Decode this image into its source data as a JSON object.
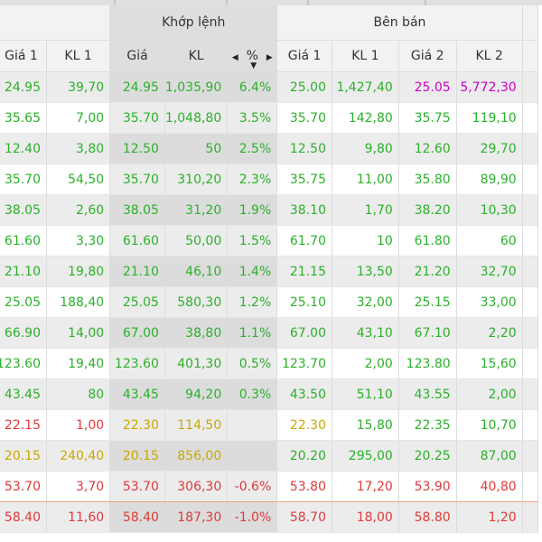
{
  "colors": {
    "up": "#2bb12b",
    "reference": "#c9a800",
    "down": "#e03a3a",
    "ceiling": "#cc00cc"
  },
  "groups": {
    "khop_lenh": "Khớp lệnh",
    "ben_ban": "Bên bán"
  },
  "headers": {
    "buy_price1": "Giá 1",
    "buy_vol1": "KL 1",
    "match_price": "Giá",
    "match_vol": "KL",
    "change_pct": "%",
    "sell_price1": "Giá 1",
    "sell_vol1": "KL 1",
    "sell_price2": "Giá 2",
    "sell_vol2": "KL 2"
  },
  "rows": [
    {
      "c": [
        "24.95",
        "39,70",
        "24.95",
        "1,035,90",
        "6.4%",
        "25.00",
        "1,427,40",
        "25.05",
        "5,772,30"
      ],
      "k": [
        "up",
        "up",
        "up",
        "up",
        "up",
        "up",
        "up",
        "ceil",
        "ceil"
      ]
    },
    {
      "c": [
        "35.65",
        "7,00",
        "35.70",
        "1,048,80",
        "3.5%",
        "35.70",
        "142,80",
        "35.75",
        "119,10"
      ],
      "k": [
        "up",
        "up",
        "up",
        "up",
        "up",
        "up",
        "up",
        "up",
        "up"
      ]
    },
    {
      "c": [
        "12.40",
        "3,80",
        "12.50",
        "50",
        "2.5%",
        "12.50",
        "9,80",
        "12.60",
        "29,70"
      ],
      "k": [
        "up",
        "up",
        "up",
        "up",
        "up",
        "up",
        "up",
        "up",
        "up"
      ]
    },
    {
      "c": [
        "35.70",
        "54,50",
        "35.70",
        "310,20",
        "2.3%",
        "35.75",
        "11,00",
        "35.80",
        "89,90"
      ],
      "k": [
        "up",
        "up",
        "up",
        "up",
        "up",
        "up",
        "up",
        "up",
        "up"
      ]
    },
    {
      "c": [
        "38.05",
        "2,60",
        "38.05",
        "31,20",
        "1.9%",
        "38.10",
        "1,70",
        "38.20",
        "10,30"
      ],
      "k": [
        "up",
        "up",
        "up",
        "up",
        "up",
        "up",
        "up",
        "up",
        "up"
      ]
    },
    {
      "c": [
        "61.60",
        "3,30",
        "61.60",
        "50,00",
        "1.5%",
        "61.70",
        "10",
        "61.80",
        "60"
      ],
      "k": [
        "up",
        "up",
        "up",
        "up",
        "up",
        "up",
        "up",
        "up",
        "up"
      ]
    },
    {
      "c": [
        "21.10",
        "19,80",
        "21.10",
        "46,10",
        "1.4%",
        "21.15",
        "13,50",
        "21.20",
        "32,70"
      ],
      "k": [
        "up",
        "up",
        "up",
        "up",
        "up",
        "up",
        "up",
        "up",
        "up"
      ]
    },
    {
      "c": [
        "25.05",
        "188,40",
        "25.05",
        "580,30",
        "1.2%",
        "25.10",
        "32,00",
        "25.15",
        "33,00"
      ],
      "k": [
        "up",
        "up",
        "up",
        "up",
        "up",
        "up",
        "up",
        "up",
        "up"
      ]
    },
    {
      "c": [
        "66.90",
        "14,00",
        "67.00",
        "38,80",
        "1.1%",
        "67.00",
        "43,10",
        "67.10",
        "2,20"
      ],
      "k": [
        "up",
        "up",
        "up",
        "up",
        "up",
        "up",
        "up",
        "up",
        "up"
      ]
    },
    {
      "c": [
        "123.60",
        "19,40",
        "123.60",
        "401,30",
        "0.5%",
        "123.70",
        "2,00",
        "123.80",
        "15,60"
      ],
      "k": [
        "up",
        "up",
        "up",
        "up",
        "up",
        "up",
        "up",
        "up",
        "up"
      ]
    },
    {
      "c": [
        "43.45",
        "80",
        "43.45",
        "94,20",
        "0.3%",
        "43.50",
        "51,10",
        "43.55",
        "2,00"
      ],
      "k": [
        "up",
        "up",
        "up",
        "up",
        "up",
        "up",
        "up",
        "up",
        "up"
      ]
    },
    {
      "c": [
        "22.15",
        "1,00",
        "22.30",
        "114,50",
        "",
        "22.30",
        "15,80",
        "22.35",
        "10,70"
      ],
      "k": [
        "down",
        "down",
        "ref",
        "ref",
        "ref",
        "ref",
        "up",
        "up",
        "up"
      ]
    },
    {
      "c": [
        "20.15",
        "240,40",
        "20.15",
        "856,00",
        "",
        "20.20",
        "295,00",
        "20.25",
        "87,00"
      ],
      "k": [
        "ref",
        "ref",
        "ref",
        "ref",
        "ref",
        "up",
        "up",
        "up",
        "up"
      ]
    },
    {
      "c": [
        "53.70",
        "3,70",
        "53.70",
        "306,30",
        "-0.6%",
        "53.80",
        "17,20",
        "53.90",
        "40,80"
      ],
      "k": [
        "down",
        "down",
        "down",
        "down",
        "down",
        "down",
        "down",
        "down",
        "down"
      ]
    },
    {
      "c": [
        "58.40",
        "11,60",
        "58.40",
        "187,30",
        "-1.0%",
        "58.70",
        "18,00",
        "58.80",
        "1,20"
      ],
      "k": [
        "down",
        "down",
        "down",
        "down",
        "down",
        "down",
        "down",
        "down",
        "down"
      ]
    }
  ]
}
